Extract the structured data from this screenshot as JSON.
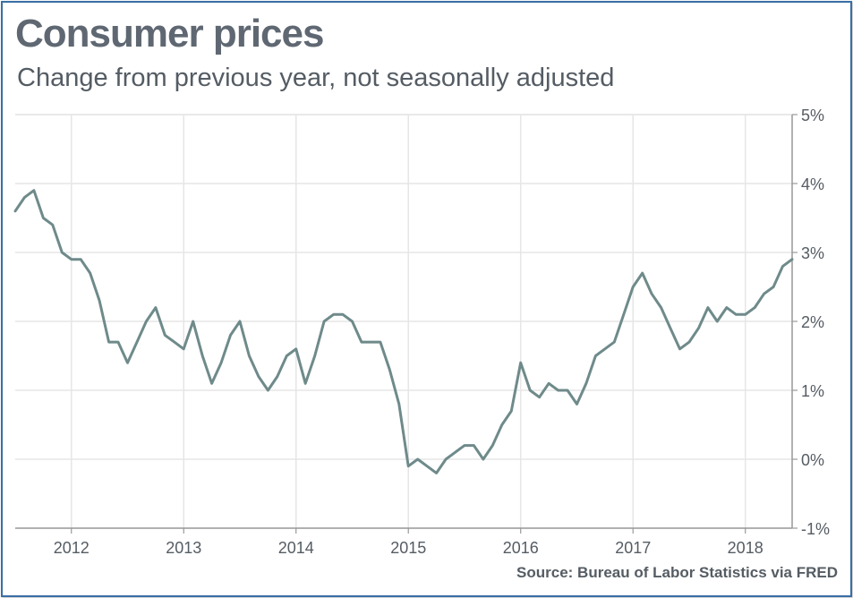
{
  "title": "Consumer prices",
  "subtitle": "Change from previous year, not seasonally adjusted",
  "source": "Source: Bureau of Labor Statistics via FRED",
  "colors": {
    "line": "#6f8a8a",
    "grid": "#e6e6e6",
    "axis": "#999999",
    "text": "#555c63"
  },
  "chart_data": {
    "type": "line",
    "xlabel": "",
    "ylabel": "",
    "x_ticks": [
      "2012",
      "2013",
      "2014",
      "2015",
      "2016",
      "2017",
      "2018"
    ],
    "y_ticks": [
      "-1%",
      "0%",
      "1%",
      "2%",
      "3%",
      "4%",
      "5%"
    ],
    "ylim": [
      -1,
      5
    ],
    "xlim": [
      "2011-07",
      "2018-06"
    ],
    "grid": true,
    "series": [
      {
        "x": [
          "2011-07",
          "2011-08",
          "2011-09",
          "2011-10",
          "2011-11",
          "2011-12",
          "2012-01",
          "2012-02",
          "2012-03",
          "2012-04",
          "2012-05",
          "2012-06",
          "2012-07",
          "2012-08",
          "2012-09",
          "2012-10",
          "2012-11",
          "2012-12",
          "2013-01",
          "2013-02",
          "2013-03",
          "2013-04",
          "2013-05",
          "2013-06",
          "2013-07",
          "2013-08",
          "2013-09",
          "2013-10",
          "2013-11",
          "2013-12",
          "2014-01",
          "2014-02",
          "2014-03",
          "2014-04",
          "2014-05",
          "2014-06",
          "2014-07",
          "2014-08",
          "2014-09",
          "2014-10",
          "2014-11",
          "2014-12",
          "2015-01",
          "2015-02",
          "2015-03",
          "2015-04",
          "2015-05",
          "2015-06",
          "2015-07",
          "2015-08",
          "2015-09",
          "2015-10",
          "2015-11",
          "2015-12",
          "2016-01",
          "2016-02",
          "2016-03",
          "2016-04",
          "2016-05",
          "2016-06",
          "2016-07",
          "2016-08",
          "2016-09",
          "2016-10",
          "2016-11",
          "2016-12",
          "2017-01",
          "2017-02",
          "2017-03",
          "2017-04",
          "2017-05",
          "2017-06",
          "2017-07",
          "2017-08",
          "2017-09",
          "2017-10",
          "2017-11",
          "2017-12",
          "2018-01",
          "2018-02",
          "2018-03",
          "2018-04",
          "2018-05",
          "2018-06"
        ],
        "values": [
          3.6,
          3.8,
          3.9,
          3.5,
          3.4,
          3.0,
          2.9,
          2.9,
          2.7,
          2.3,
          1.7,
          1.7,
          1.4,
          1.7,
          2.0,
          2.2,
          1.8,
          1.7,
          1.6,
          2.0,
          1.5,
          1.1,
          1.4,
          1.8,
          2.0,
          1.5,
          1.2,
          1.0,
          1.2,
          1.5,
          1.6,
          1.1,
          1.5,
          2.0,
          2.1,
          2.1,
          2.0,
          1.7,
          1.7,
          1.7,
          1.3,
          0.8,
          -0.1,
          0.0,
          -0.1,
          -0.2,
          0.0,
          0.1,
          0.2,
          0.2,
          0.0,
          0.2,
          0.5,
          0.7,
          1.4,
          1.0,
          0.9,
          1.1,
          1.0,
          1.0,
          0.8,
          1.1,
          1.5,
          1.6,
          1.7,
          2.1,
          2.5,
          2.7,
          2.4,
          2.2,
          1.9,
          1.6,
          1.7,
          1.9,
          2.2,
          2.0,
          2.2,
          2.1,
          2.1,
          2.2,
          2.4,
          2.5,
          2.8,
          2.9
        ]
      }
    ]
  }
}
